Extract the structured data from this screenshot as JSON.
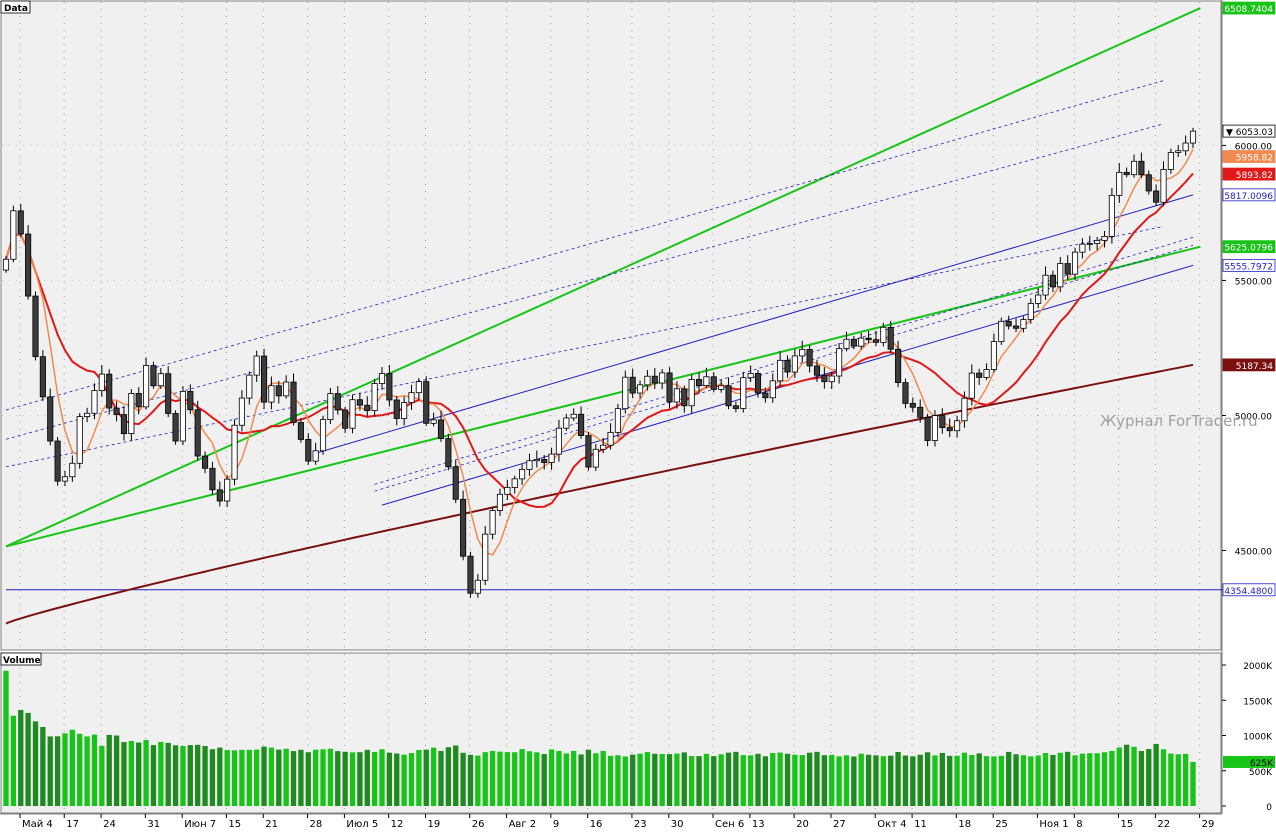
{
  "panels": {
    "price_label": "Data",
    "volume_label": "Volume",
    "watermark": "Журнал ForTrader.ru"
  },
  "price_axis": {
    "ticks": [
      "6000.00",
      "5500.00",
      "5000.00",
      "4500.00"
    ],
    "markers": [
      {
        "value": 6508.7404,
        "label": "6508.7404",
        "bg": "#18c418",
        "fg": "#ffffff"
      },
      {
        "value": 6053.03,
        "label": "▼ 6053.03",
        "bg": "#ffffff",
        "fg": "#000000",
        "border": "#000000"
      },
      {
        "value": 5958.82,
        "label": "5958.82",
        "bg": "#f28a50",
        "fg": "#ffffff"
      },
      {
        "value": 5893.82,
        "label": "5893.82",
        "bg": "#e01818",
        "fg": "#ffffff"
      },
      {
        "value": 5817.0096,
        "label": "5817.0096",
        "bg": "#ffffff",
        "fg": "#2020c0",
        "border": "#2020c0"
      },
      {
        "value": 5625.0796,
        "label": "5625.0796",
        "bg": "#18c418",
        "fg": "#ffffff"
      },
      {
        "value": 5555.7972,
        "label": "5555.7972",
        "bg": "#ffffff",
        "fg": "#2020c0",
        "border": "#2020c0"
      },
      {
        "value": 5187.34,
        "label": "5187.34",
        "bg": "#7a1010",
        "fg": "#ffffff"
      },
      {
        "value": 4354.48,
        "label": "4354.4800",
        "bg": "#ffffff",
        "fg": "#2020c0",
        "border": "#2020c0"
      }
    ]
  },
  "volume_axis": {
    "ticks": [
      "2000K",
      "1500K",
      "1000K",
      "500K",
      "0"
    ],
    "marker": {
      "label": "625K",
      "bg": "#18c418",
      "fg": "#000000"
    }
  },
  "x_axis": {
    "labels": [
      "Май 4",
      "17",
      "24",
      "31",
      "Июн 7",
      "15",
      "21",
      "28",
      "Июл 5",
      "12",
      "19",
      "26",
      "Авг 2",
      "9",
      "16",
      "23",
      "30",
      "Сен 6",
      "13",
      "20",
      "27",
      "Окт 4",
      "11",
      "18",
      "25",
      "Ноя 1",
      "8",
      "15",
      "22",
      "29"
    ]
  },
  "colors": {
    "bull": "#ffffff",
    "bear": "#3c3c3c",
    "ma_fast": "#f28a50",
    "ma_mid": "#e01818",
    "ma_slow": "#7a1010",
    "green_line": "#18c418",
    "blue_line": "#2020c0",
    "vol_up": "#18c418",
    "vol_down": "#1f8a1f"
  },
  "chart_data": {
    "type": "candlestick",
    "y_range": [
      4150,
      6520
    ],
    "volume_range_k": [
      0,
      2100
    ],
    "candle_count": 162,
    "last_close": 6053.03,
    "moving_averages": [
      {
        "value": 5958.82
      },
      {
        "value": 5893.82
      },
      {
        "value": 5187.34
      }
    ],
    "closes": [
      5578.5,
      5757.8,
      5671.9,
      5442.1,
      5217.8,
      5068.9,
      4905.3,
      4756.8,
      4773.0,
      4822.9,
      4995.9,
      5008.1,
      5092.0,
      5153.1,
      5027.5,
      5003.2,
      4932.8,
      5081.7,
      5031.9,
      5184.9,
      5110.0,
      5154.7,
      5007.3,
      4905.3,
      5089.2,
      5021.1,
      4849.7,
      4804.4,
      4724.7,
      4683.2,
      4764.0,
      4963.8,
      5064.4,
      5149.4,
      5220.0,
      5049.4,
      5110.1,
      5072.5,
      5123.7,
      4973.9,
      4911.2,
      4830.9,
      4869.2,
      4984.6,
      5081.0,
      5020.4,
      4952.8,
      5058.3,
      5038.0,
      5018.0,
      5118.2,
      5155.4,
      5057.4,
      4988.8,
      5047.8,
      5084.4,
      5125.4,
      4970.9,
      4983.7,
      4914.4,
      4809.9,
      4689.6,
      4478.8,
      4341.7,
      4389.7,
      4560.5,
      4648.0,
      4708.1,
      4732.9,
      4765.2,
      4800.5,
      4832.3,
      4837.2,
      4825.7,
      4856.9,
      4952.9,
      4990.7,
      5004.5,
      4925.6,
      4808.8,
      4874.7,
      4890.0,
      4937.4,
      5025.2,
      5141.6,
      5083.0,
      5113.4,
      5145.3,
      5120.1,
      5157.7,
      5050.0,
      5098.8,
      5035.9,
      5133.3,
      5110.6,
      5143.3,
      5096.5,
      5110.0,
      5035.9,
      5025.7,
      5139.8,
      5155.8,
      5083.1,
      5065.6,
      5128.2,
      5204.2,
      5160.8,
      5220.5,
      5244.5,
      5183.4,
      5149.1,
      5125.1,
      5146.1,
      5247.4,
      5282.2,
      5256.6,
      5286.5,
      5280.5,
      5270.7,
      5326.4,
      5245.3,
      5121.7,
      5044.6,
      5030.3,
      4993.1,
      4907.2,
      4999.5,
      4954.9,
      4943.5,
      4980.3,
      5064.0,
      5156.9,
      5140.9,
      5170.2,
      5273.4,
      5348.6,
      5331.3,
      5322.8,
      5355.3,
      5415.0,
      5445.9,
      5519.3,
      5476.3,
      5562.7,
      5523.3,
      5604.9,
      5634.5,
      5636.5,
      5648.2,
      5663.1,
      5815.1,
      5900.2,
      5891.6,
      5941.3,
      5891.3,
      5831.3,
      5789.7,
      5911.1,
      5974.0,
      5980.1,
      6008.8,
      6053.0
    ],
    "volume_k": [
      1919,
      1280,
      1363,
      1321,
      1201,
      1121,
      987,
      989,
      1031,
      1082,
      1025,
      987,
      1013,
      853,
      1009,
      1000,
      907,
      923,
      901,
      936,
      864,
      909,
      895,
      861,
      851,
      864,
      868,
      852,
      806,
      829,
      794,
      790,
      797,
      797,
      801,
      843,
      829,
      800,
      812,
      779,
      798,
      763,
      799,
      805,
      813,
      779,
      769,
      761,
      764,
      797,
      767,
      805,
      756,
      745,
      728,
      752,
      795,
      800,
      828,
      780,
      834,
      859,
      755,
      726,
      715,
      764,
      782,
      771,
      764,
      763,
      808,
      777,
      762,
      737,
      803,
      781,
      746,
      782,
      732,
      799,
      748,
      781,
      712,
      720,
      703,
      729,
      742,
      765,
      741,
      739,
      737,
      744,
      761,
      709,
      708,
      741,
      708,
      734,
      757,
      768,
      722,
      719,
      741,
      706,
      752,
      758,
      741,
      727,
      723,
      757,
      768,
      721,
      726,
      705,
      719,
      702,
      742,
      727,
      719,
      708,
      714,
      766,
      716,
      705,
      727,
      762,
      718,
      753,
      712,
      713,
      757,
      724,
      746,
      708,
      703,
      712,
      767,
      734,
      721,
      704,
      717,
      752,
      725,
      755,
      769,
      719,
      743,
      750,
      749,
      763,
      781,
      830,
      870,
      840,
      780,
      808,
      881,
      805,
      744,
      734,
      740,
      625
    ]
  }
}
